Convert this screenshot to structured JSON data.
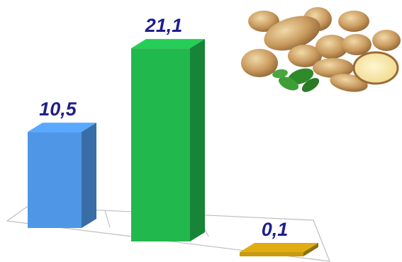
{
  "chart_data": {
    "type": "bar",
    "categories": [
      "",
      "",
      ""
    ],
    "values": [
      10.5,
      21.1,
      0.1
    ],
    "data_labels": [
      "10,5",
      "21,1",
      "0,1"
    ],
    "colors": [
      "#4f97e6",
      "#21b84d",
      "#c89a10"
    ],
    "title": "",
    "xlabel": "",
    "ylabel": "",
    "grid": false,
    "legend": "none",
    "style": "3d-bars-with-white-floor"
  },
  "decor": {
    "image_icon": "potatoes-with-basil-photo"
  }
}
